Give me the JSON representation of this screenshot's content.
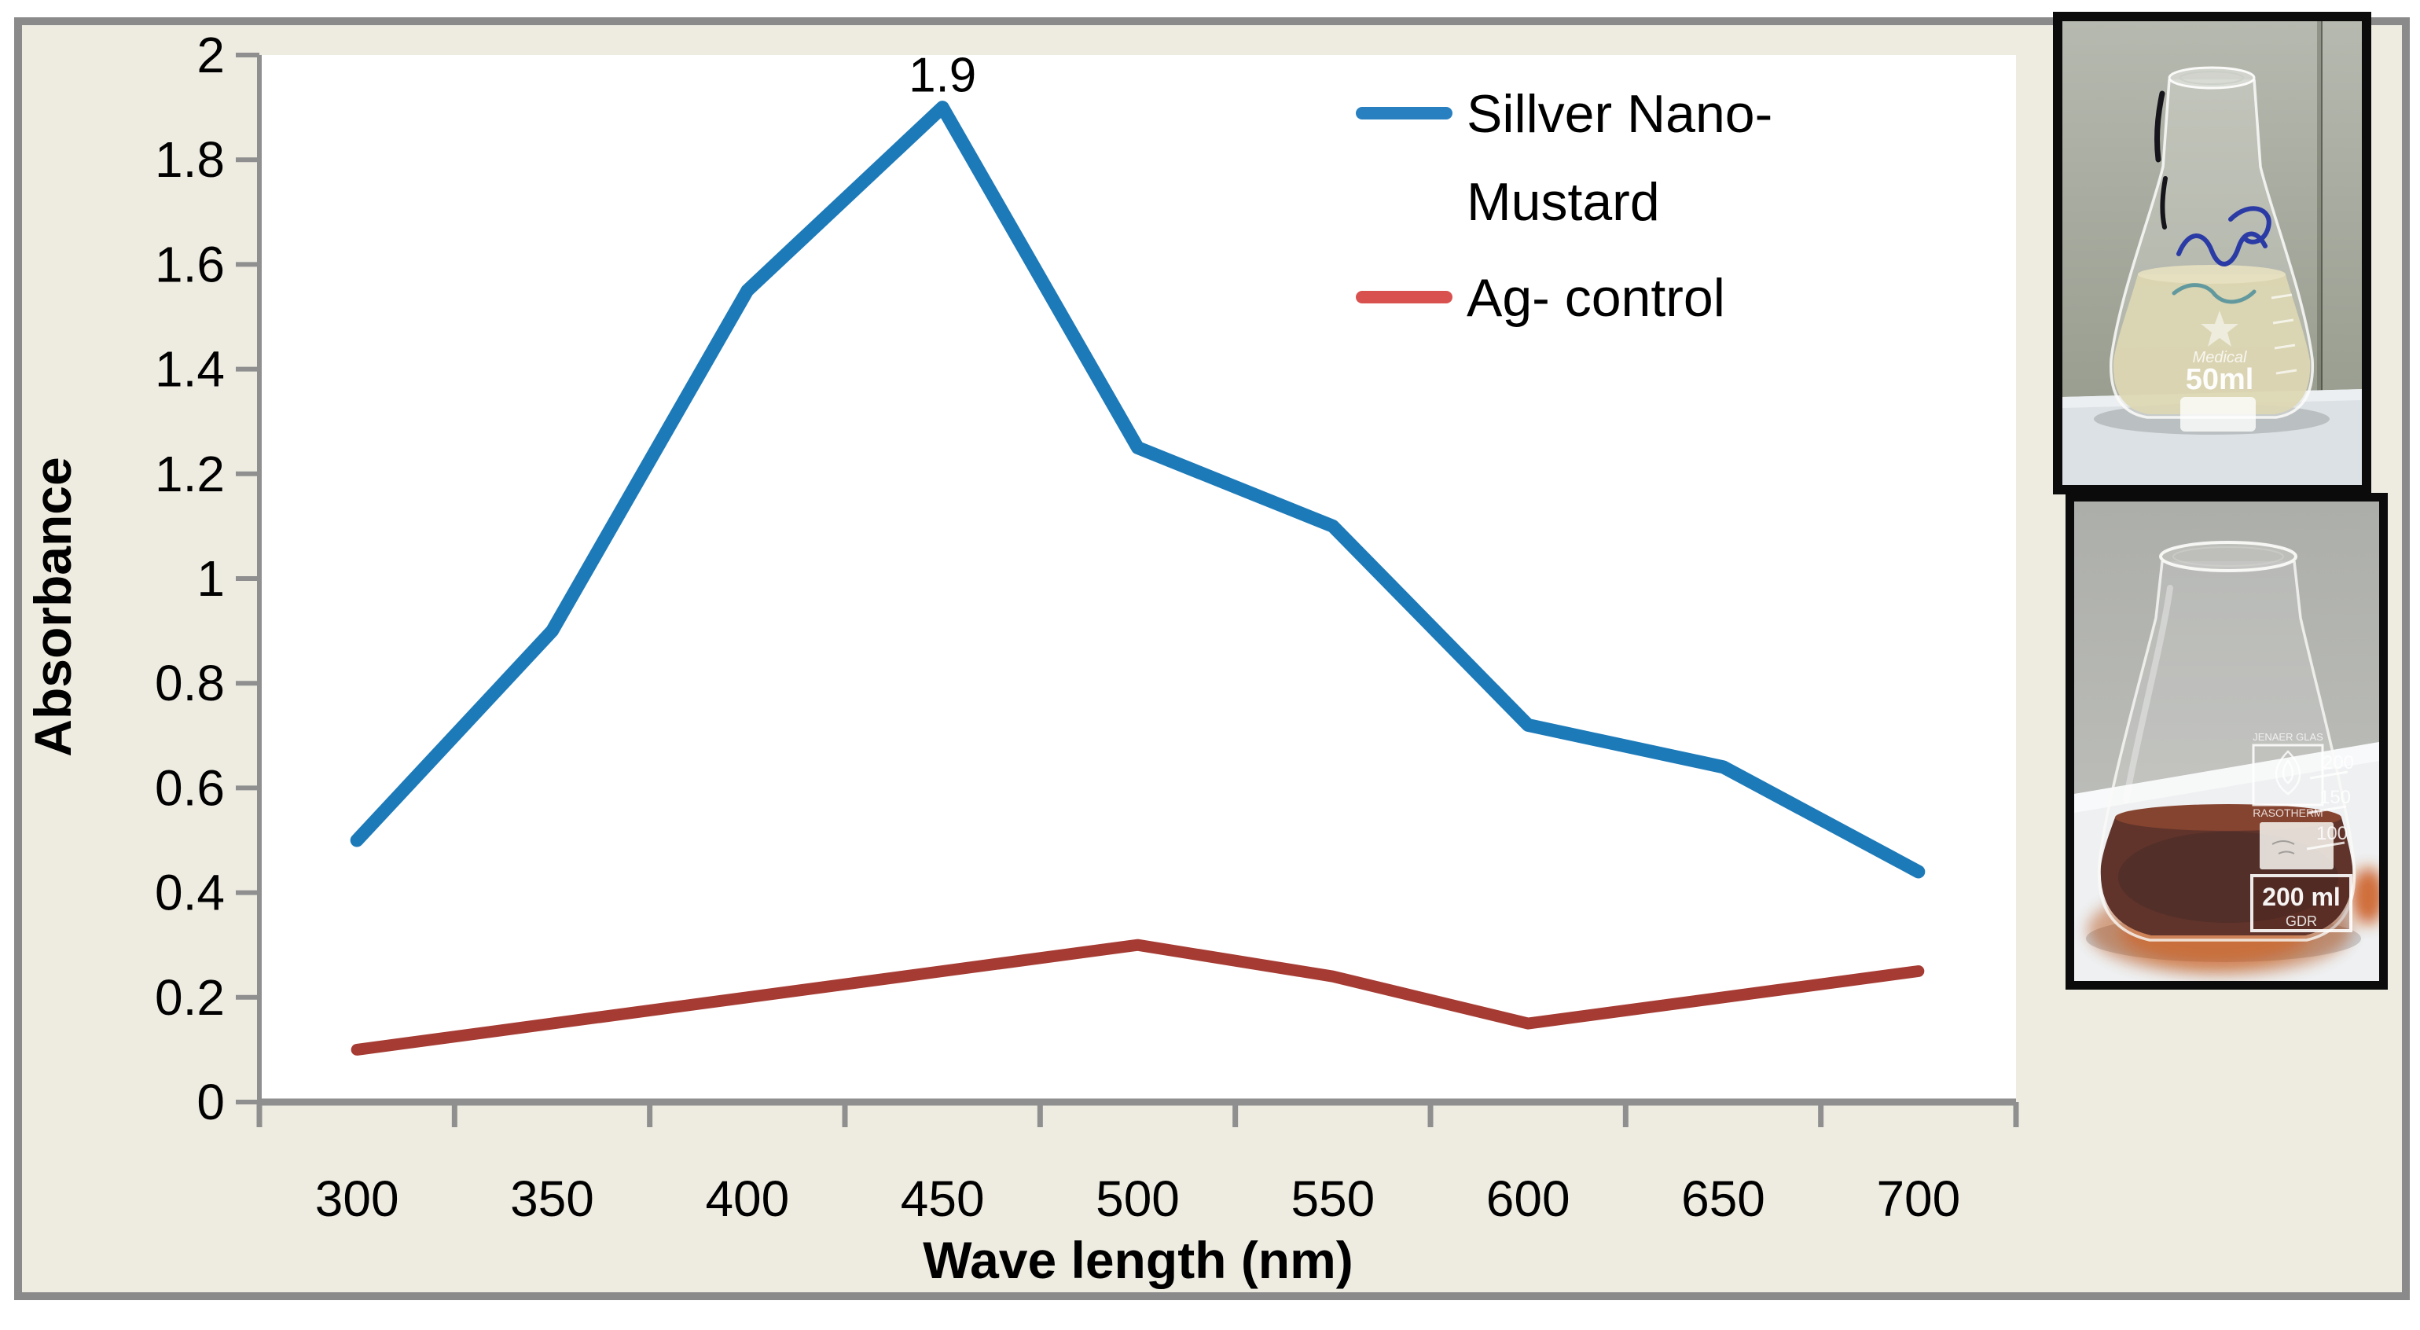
{
  "figure": {
    "background_color": "#EEECE1",
    "frame_color": "#8a8a8a",
    "plot_background": "#ffffff",
    "axis_color": "#8f8f8f"
  },
  "chart_data": {
    "type": "line",
    "title": "",
    "xlabel": "Wave length (nm)",
    "ylabel": "Absorbance",
    "categories": [
      300,
      350,
      400,
      450,
      500,
      550,
      600,
      650,
      700
    ],
    "x_tick_labels": [
      "300",
      "350",
      "400",
      "450",
      "500",
      "550",
      "600",
      "650",
      "700"
    ],
    "y_ticks": [
      0,
      0.2,
      0.4,
      0.6,
      0.8,
      1,
      1.2,
      1.4,
      1.6,
      1.8,
      2
    ],
    "y_tick_labels": [
      "0",
      "0.2",
      "0.4",
      "0.6",
      "0.8",
      "1",
      "1.2",
      "1.4",
      "1.6",
      "1.8",
      "2"
    ],
    "ylim": [
      0,
      2
    ],
    "grid": false,
    "legend_position": "top-right-inside",
    "annotation": {
      "text": "1.9",
      "category": 450,
      "value": 1.9,
      "series": "Sillver Nano-Mustard"
    },
    "series": [
      {
        "name": "Sillver Nano-Mustard",
        "legend_lines": [
          "Sillver Nano-",
          "Mustard"
        ],
        "color": "#1D7AB9",
        "legend_color": "#2980C0",
        "values": [
          0.5,
          0.9,
          1.55,
          1.9,
          1.25,
          1.1,
          0.72,
          0.64,
          0.44
        ]
      },
      {
        "name": "Ag- control",
        "legend_lines": [
          "Ag- control"
        ],
        "color": "#A63B33",
        "legend_color": "#D9514E",
        "values": [
          0.1,
          0.15,
          0.2,
          0.25,
          0.3,
          0.24,
          0.15,
          0.2,
          0.25
        ]
      }
    ]
  },
  "photos": {
    "top": {
      "description": "Erlenmeyer flask with pale yellow solution (silver control before reaction)",
      "brand_label": "Medical",
      "volume_label": "50ml"
    },
    "bottom": {
      "description": "Erlenmeyer flask with dark red-brown silver nanoparticle solution",
      "emblem_top": "JENAER GLAS",
      "emblem_brand": "RASOTHERM",
      "volume_label": "200 ml",
      "origin_label": "GDR",
      "graduation_labels": [
        "200",
        "150",
        "100"
      ]
    }
  }
}
